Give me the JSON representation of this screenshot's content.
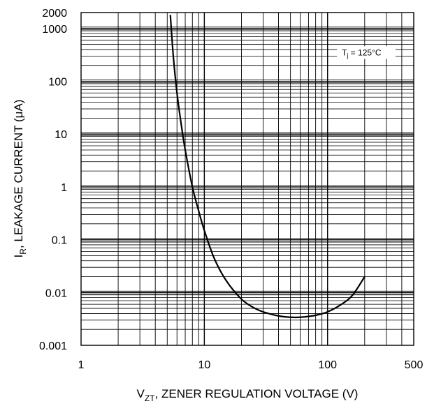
{
  "chart_data": {
    "type": "line",
    "xlabel": {
      "base": "V",
      "sub": "ZT",
      "rest": ", ZENER REGULATION VOLTAGE (V)"
    },
    "ylabel": {
      "base": "I",
      "sub": "R",
      "rest": ", LEAKAGE CURRENT (μA)"
    },
    "x_scale": "log",
    "y_scale": "log",
    "xlim": [
      1,
      500
    ],
    "ylim": [
      0.001,
      2000
    ],
    "x_tick_labels": [
      "1",
      "10",
      "100",
      "500"
    ],
    "y_tick_labels": [
      "2000",
      "1000",
      "100",
      "10",
      "1",
      "0.1",
      "0.01",
      "0.001"
    ],
    "grid": true,
    "annotation": {
      "base": "T",
      "sub": "j",
      "rest": " = 125°C"
    },
    "series": [
      {
        "x": [
          5.3,
          5.6,
          6,
          6.5,
          7,
          8,
          9,
          10,
          12,
          15,
          20,
          25,
          30,
          40,
          50,
          60,
          80,
          100,
          130,
          160,
          200
        ],
        "y": [
          1800,
          300,
          60,
          15,
          5,
          1,
          0.35,
          0.15,
          0.045,
          0.017,
          0.0075,
          0.0052,
          0.0043,
          0.0036,
          0.0034,
          0.0034,
          0.0037,
          0.0043,
          0.006,
          0.009,
          0.02
        ]
      }
    ]
  }
}
